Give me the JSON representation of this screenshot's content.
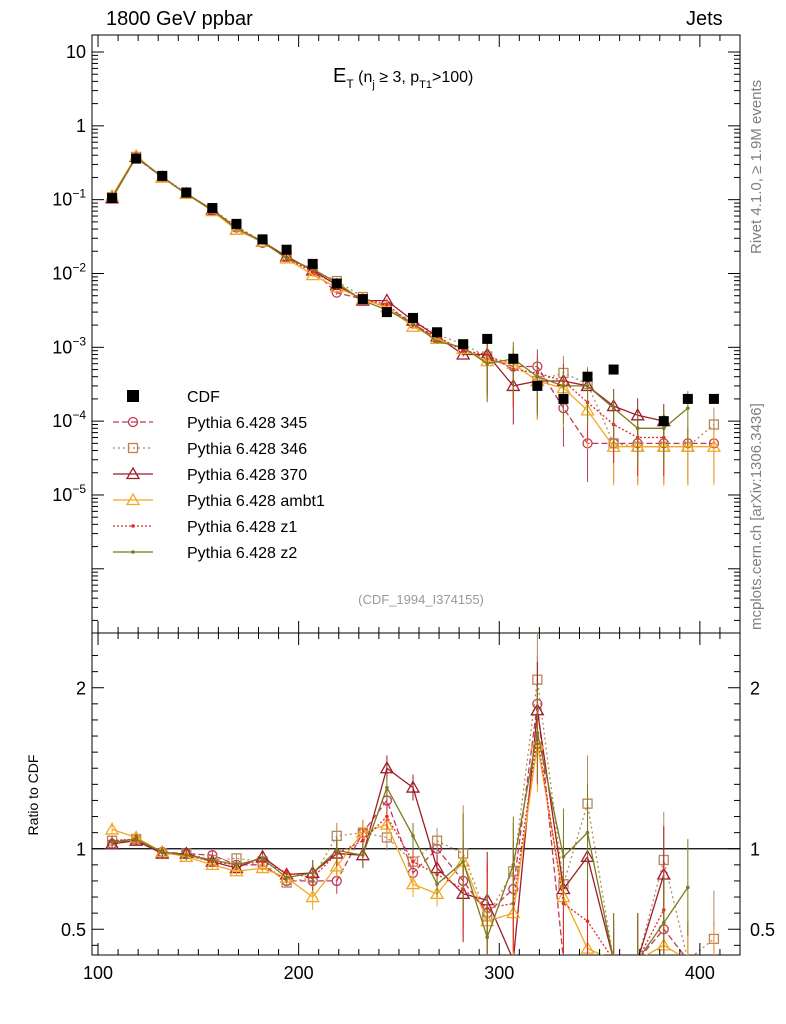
{
  "header": {
    "left_title": "1800 GeV ppbar",
    "right_title": "Jets",
    "side_top": "Rivet 4.1.0, ≥ 1.9M events",
    "side_bottom": "mcplots.cern.ch [arXiv:1306.3436]",
    "analysis_tag": "(CDF_1994_I374155)"
  },
  "chart_data": {
    "type": "line",
    "title": "E_T (n_j ≥ 3, p_T1>100)",
    "title_parts": {
      "main": "E",
      "main_sub": "T",
      "open": " (n",
      "sub1": "j",
      "mid": " ≥ 3, p",
      "sub2": "T1",
      "close": ">100)"
    },
    "xlabel": "",
    "ylabel": "",
    "ratio_ylabel": "Ratio to CDF",
    "xlim": [
      97,
      420
    ],
    "ylim": [
      1.35e-07,
      17
    ],
    "ratio_ylim": [
      0.34,
      2.34
    ],
    "x_ticks": [
      100,
      200,
      300,
      400
    ],
    "x_tick_labels": [
      "100",
      "200",
      "300",
      "400"
    ],
    "y_ticks": [
      10,
      1,
      0.1,
      0.01,
      0.001,
      0.0001,
      1e-05
    ],
    "y_tick_labels": [
      {
        "base": "10",
        "exp": ""
      },
      {
        "base": "1",
        "exp": ""
      },
      {
        "base": "10",
        "exp": "−1"
      },
      {
        "base": "10",
        "exp": "−2"
      },
      {
        "base": "10",
        "exp": "−3"
      },
      {
        "base": "10",
        "exp": "−4"
      },
      {
        "base": "10",
        "exp": "−5"
      }
    ],
    "ratio_ticks": [
      0.5,
      1,
      2
    ],
    "ratio_tick_labels": [
      "0.5",
      "1",
      "2"
    ],
    "legend_position": "lower-left",
    "x": [
      107,
      119,
      132,
      144,
      157,
      169,
      182,
      194,
      207,
      219,
      232,
      244,
      257,
      269,
      282,
      294,
      307,
      319,
      332,
      344,
      357,
      369,
      382,
      394,
      407
    ],
    "data": {
      "name": "CDF",
      "values": [
        0.105,
        0.36,
        0.21,
        0.125,
        0.077,
        0.047,
        0.029,
        0.021,
        0.0135,
        0.0073,
        0.0045,
        0.003,
        0.0025,
        0.0016,
        0.0011,
        0.0013,
        0.0007,
        0.0003,
        0.0002,
        0.0004,
        0.0005,
        null,
        0.0001,
        0.0002,
        0.0002
      ]
    },
    "series": [
      {
        "name": "Pythia 6.428 345",
        "color": "#c0395a",
        "marker": "circle",
        "dash": "6,3",
        "values": [
          0.106,
          0.37,
          0.2,
          0.12,
          0.073,
          0.042,
          0.026,
          0.017,
          0.011,
          0.0055,
          0.0045,
          0.0035,
          0.0021,
          0.0013,
          0.00095,
          0.0007,
          0.00055,
          0.00055,
          0.00015,
          5e-05,
          5e-05,
          5e-05,
          5e-05,
          5e-05,
          5e-05
        ],
        "ratio": [
          1.03,
          1.06,
          0.98,
          0.97,
          0.96,
          0.9,
          0.9,
          0.8,
          0.8,
          0.8,
          1.1,
          1.3,
          0.85,
          1.0,
          0.8,
          0.6,
          0.75,
          1.9,
          0.3,
          0.1,
          0.1,
          0.1,
          0.5,
          0.25,
          0.25
        ]
      },
      {
        "name": "Pythia 6.428 346",
        "color": "#b5885a",
        "marker": "square",
        "dash": "2,3",
        "values": [
          0.108,
          0.38,
          0.205,
          0.12,
          0.074,
          0.044,
          0.027,
          0.017,
          0.011,
          0.0079,
          0.0048,
          0.0033,
          0.0023,
          0.0015,
          0.0011,
          0.00075,
          0.0006,
          0.00035,
          0.00045,
          0.00032,
          5e-05,
          4.5e-05,
          4.5e-05,
          4.5e-05,
          9e-05
        ],
        "ratio": [
          1.05,
          1.06,
          0.97,
          0.97,
          0.93,
          0.94,
          0.92,
          0.79,
          0.82,
          1.08,
          1.1,
          1.07,
          0.92,
          1.05,
          0.97,
          0.58,
          0.86,
          2.05,
          0.78,
          1.28,
          0.2,
          0.3,
          0.93,
          0.22,
          0.44
        ]
      },
      {
        "name": "Pythia 6.428 370",
        "color": "#9e1c2c",
        "marker": "triangle",
        "dash": "",
        "values": [
          0.104,
          0.38,
          0.2,
          0.12,
          0.073,
          0.039,
          0.027,
          0.017,
          0.011,
          0.007,
          0.0043,
          0.0043,
          0.0023,
          0.0014,
          0.0008,
          0.0008,
          0.0003,
          0.00035,
          0.00035,
          0.0003,
          0.00016,
          0.00012,
          0.0001,
          null,
          null
        ],
        "ratio": [
          1.03,
          1.05,
          0.97,
          0.97,
          0.92,
          0.88,
          0.95,
          0.84,
          0.85,
          0.97,
          0.96,
          1.5,
          1.38,
          0.88,
          0.72,
          0.68,
          0.3,
          1.86,
          0.75,
          0.95,
          0.25,
          0.25,
          0.84,
          null,
          null
        ]
      },
      {
        "name": "Pythia 6.428 ambt1",
        "color": "#f4a720",
        "marker": "triangle",
        "dash": "",
        "values": [
          0.112,
          0.39,
          0.2,
          0.12,
          0.07,
          0.039,
          0.027,
          0.016,
          0.0095,
          0.0065,
          0.0045,
          0.0035,
          0.0019,
          0.0013,
          0.00095,
          0.00065,
          0.0006,
          0.00035,
          0.00028,
          0.00014,
          4.5e-05,
          4.5e-05,
          4.5e-05,
          4.5e-05,
          4.5e-05
        ],
        "ratio": [
          1.12,
          1.07,
          0.98,
          0.95,
          0.9,
          0.86,
          0.88,
          0.82,
          0.7,
          0.89,
          1.1,
          1.15,
          0.78,
          0.72,
          0.92,
          0.55,
          0.6,
          1.65,
          0.7,
          0.38,
          0.1,
          0.1,
          0.4,
          0.22,
          0.22
        ]
      },
      {
        "name": "Pythia 6.428 z1",
        "color": "#e52a2a",
        "marker": "dot",
        "dash": "2,2",
        "values": [
          0.106,
          0.38,
          0.205,
          0.122,
          0.073,
          0.042,
          0.027,
          0.016,
          0.0105,
          0.007,
          0.0045,
          0.0038,
          0.002,
          0.0014,
          0.0009,
          0.0008,
          0.0005,
          0.00045,
          0.00035,
          0.00018,
          9e-05,
          6e-05,
          6e-05,
          null,
          null
        ],
        "ratio": [
          1.05,
          1.06,
          0.98,
          0.96,
          0.92,
          0.9,
          0.92,
          0.85,
          0.82,
          0.97,
          1.05,
          1.2,
          0.92,
          0.84,
          0.75,
          0.63,
          0.66,
          1.7,
          0.66,
          0.55,
          0.3,
          0.3,
          0.62,
          null,
          null
        ]
      },
      {
        "name": "Pythia 6.428 z2",
        "color": "#7b7b1f",
        "marker": "dot",
        "dash": "",
        "values": [
          0.107,
          0.38,
          0.203,
          0.12,
          0.072,
          0.041,
          0.027,
          0.016,
          0.0115,
          0.0075,
          0.0043,
          0.0032,
          0.0021,
          0.0012,
          0.001,
          0.0006,
          0.0007,
          0.0004,
          0.0003,
          0.0003,
          0.00015,
          8e-05,
          8e-05,
          0.00015,
          null
        ],
        "ratio": [
          1.04,
          1.06,
          0.98,
          0.96,
          0.93,
          0.9,
          0.94,
          0.82,
          0.85,
          0.99,
          0.96,
          1.38,
          1.08,
          0.78,
          0.92,
          0.45,
          0.9,
          1.72,
          0.95,
          1.1,
          0.3,
          0.3,
          0.54,
          0.76,
          null
        ]
      }
    ]
  }
}
